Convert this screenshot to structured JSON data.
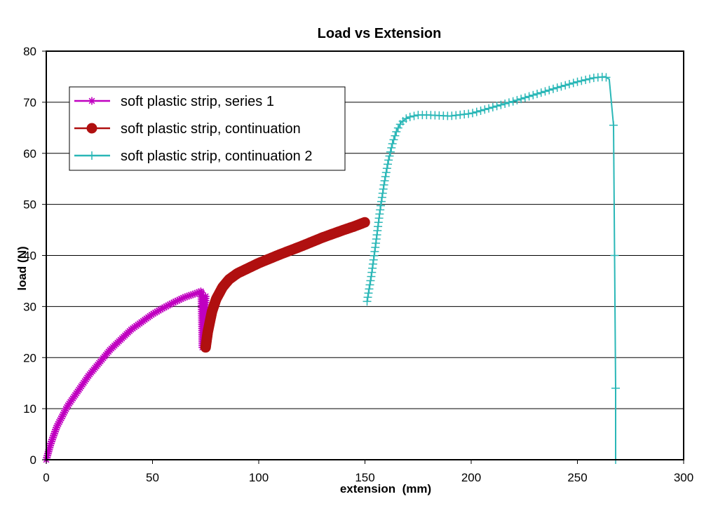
{
  "chart_data": {
    "type": "line",
    "title": "Load vs Extension",
    "xlabel": "extension  (mm)",
    "ylabel": "load (N)",
    "xlim": [
      0,
      300
    ],
    "ylim": [
      0,
      80
    ],
    "xticks": [
      0,
      50,
      100,
      150,
      200,
      250,
      300
    ],
    "yticks": [
      0,
      10,
      20,
      30,
      40,
      50,
      60,
      70,
      80
    ],
    "grid": "horizontal",
    "legend_position": "top-left",
    "series": [
      {
        "name": "soft plastic strip, series 1",
        "color": "#c000c0",
        "marker": "asterisk",
        "points": [
          [
            0,
            0
          ],
          [
            2,
            3
          ],
          [
            5,
            6.5
          ],
          [
            10,
            10.5
          ],
          [
            15,
            13.5
          ],
          [
            20,
            16.5
          ],
          [
            25,
            19
          ],
          [
            30,
            21.5
          ],
          [
            35,
            23.5
          ],
          [
            40,
            25.5
          ],
          [
            45,
            27
          ],
          [
            50,
            28.5
          ],
          [
            55,
            29.7
          ],
          [
            60,
            30.8
          ],
          [
            65,
            31.8
          ],
          [
            70,
            32.5
          ],
          [
            73,
            33
          ],
          [
            73.5,
            22
          ],
          [
            74,
            32
          ],
          [
            74.5,
            23
          ],
          [
            75,
            32
          ]
        ]
      },
      {
        "name": "soft plastic strip, continuation",
        "color": "#b01010",
        "marker": "circle",
        "points": [
          [
            75,
            22
          ],
          [
            76,
            25
          ],
          [
            78,
            29
          ],
          [
            80,
            31.5
          ],
          [
            83,
            33.8
          ],
          [
            86,
            35.3
          ],
          [
            90,
            36.5
          ],
          [
            95,
            37.5
          ],
          [
            100,
            38.5
          ],
          [
            110,
            40.2
          ],
          [
            120,
            41.8
          ],
          [
            130,
            43.5
          ],
          [
            140,
            45
          ],
          [
            145,
            45.7
          ],
          [
            150,
            46.5
          ]
        ]
      },
      {
        "name": "soft plastic strip, continuation 2",
        "color": "#2ab7b7",
        "marker": "plus",
        "points": [
          [
            151,
            31
          ],
          [
            153,
            36
          ],
          [
            155,
            42
          ],
          [
            157,
            48.5
          ],
          [
            159,
            54
          ],
          [
            161,
            58.5
          ],
          [
            163,
            62
          ],
          [
            165,
            64.5
          ],
          [
            167,
            66
          ],
          [
            170,
            67
          ],
          [
            175,
            67.5
          ],
          [
            180,
            67.5
          ],
          [
            190,
            67.3
          ],
          [
            200,
            67.8
          ],
          [
            210,
            69
          ],
          [
            220,
            70.2
          ],
          [
            230,
            71.5
          ],
          [
            240,
            72.8
          ],
          [
            250,
            74
          ],
          [
            258,
            74.8
          ],
          [
            263,
            75
          ],
          [
            265,
            74.5
          ],
          [
            267,
            65.5
          ],
          [
            267.5,
            40
          ],
          [
            268,
            14
          ],
          [
            268,
            0
          ]
        ]
      }
    ]
  }
}
